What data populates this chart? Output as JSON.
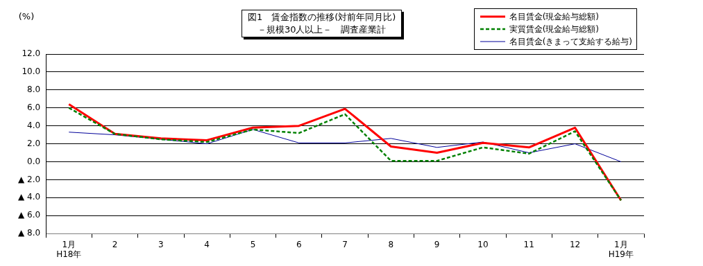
{
  "chart_data": {
    "type": "line",
    "title": "図1　賃金指数の推移(対前年同月比)",
    "subtitle": "－規模30人以上－　調査産業計",
    "ylabel": "(%)",
    "categories": [
      "1月\nH18年",
      "2",
      "3",
      "4",
      "5",
      "6",
      "7",
      "8",
      "9",
      "10",
      "11",
      "12",
      "1月\nH19年"
    ],
    "ylim": [
      -8,
      12
    ],
    "yticks": [
      {
        "value": -8,
        "label": "▲ 8.0"
      },
      {
        "value": -6,
        "label": "▲ 6.0"
      },
      {
        "value": -4,
        "label": "▲ 4.0"
      },
      {
        "value": -2,
        "label": "▲ 2.0"
      },
      {
        "value": 0,
        "label": "0.0"
      },
      {
        "value": 2,
        "label": "2.0"
      },
      {
        "value": 4,
        "label": "4.0"
      },
      {
        "value": 6,
        "label": "6.0"
      },
      {
        "value": 8,
        "label": "8.0"
      },
      {
        "value": 10,
        "label": "10.0"
      },
      {
        "value": 12,
        "label": "12.0"
      }
    ],
    "grid": "y",
    "legend": "top right",
    "marker": "none",
    "series": [
      {
        "name": "名目賃金(現金給与総額)",
        "color": "#ff0000",
        "line_style": "solid",
        "values": [
          6.4,
          3.1,
          2.6,
          2.4,
          3.8,
          4.0,
          5.9,
          1.7,
          1.0,
          2.1,
          1.6,
          3.8,
          -4.3
        ]
      },
      {
        "name": "実質賃金(現金給与総額)",
        "color": "#008000",
        "line_style": "dashed",
        "values": [
          6.0,
          3.1,
          2.5,
          2.2,
          3.6,
          3.2,
          5.3,
          0.1,
          0.1,
          1.6,
          0.9,
          3.4,
          -4.3
        ]
      },
      {
        "name": "名目賃金(きまって支給する給与)",
        "color": "#000099",
        "line_style": "solid",
        "values": [
          3.3,
          3.0,
          2.5,
          2.0,
          3.6,
          2.1,
          2.1,
          2.6,
          1.6,
          2.2,
          1.0,
          2.0,
          0.0
        ]
      }
    ]
  }
}
